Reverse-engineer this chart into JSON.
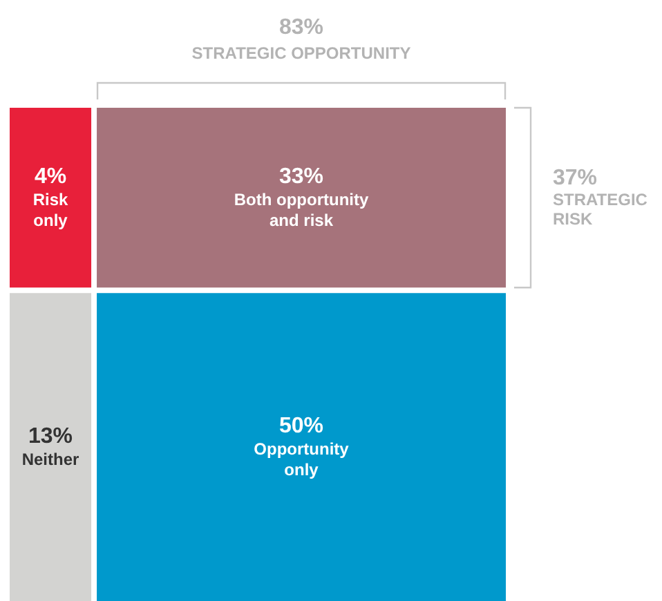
{
  "chart_data": {
    "type": "other",
    "categories": [
      "Risk only",
      "Both opportunity and risk",
      "Neither",
      "Opportunity only"
    ],
    "values": [
      4,
      33,
      13,
      50
    ],
    "value_labels": [
      "4%",
      "33%",
      "13%",
      "50%"
    ],
    "colors": [
      "#e8203a",
      "#a6737b",
      "#d3d3d1",
      "#0099cc"
    ],
    "annotations": [
      "83% STRATEGIC OPPORTUNITY",
      "37% STRATEGIC RISK"
    ]
  }
}
